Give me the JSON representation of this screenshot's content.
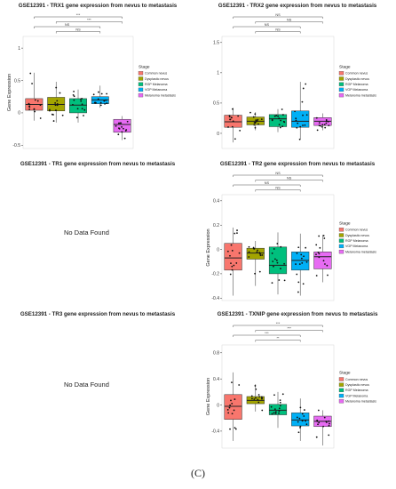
{
  "figure_caption": "(C)",
  "legend_title": "Stage",
  "legend_items": [
    {
      "name": "Common nevus",
      "color": "#f8766d"
    },
    {
      "name": "Dysplastic nevus",
      "color": "#a3a500"
    },
    {
      "name": "RGP Melanoma",
      "color": "#00bf7d"
    },
    {
      "name": "VGP Melanoma",
      "color": "#00b0f6"
    },
    {
      "name": "Melanoma metastasis",
      "color": "#e76bf3"
    }
  ],
  "chart_data": [
    {
      "id": "trx1",
      "type": "box",
      "title": "GSE12391 - TRX1 gene expression from nevus to metastasis",
      "ylabel": "Gene Expression",
      "xlabel": "",
      "ylim": [
        -0.55,
        1.18
      ],
      "yticks": [
        -0.5,
        0,
        0.5,
        1
      ],
      "ytick_labels": [
        "-0.5",
        "0",
        "0.5",
        "1"
      ],
      "grid": false,
      "legend": "right",
      "groups": [
        {
          "stage": "Common nevus",
          "q1": 0.04,
          "median": 0.13,
          "q3": 0.22,
          "lo": -0.12,
          "hi": 0.62
        },
        {
          "stage": "Dysplastic nevus",
          "q1": 0.03,
          "median": 0.13,
          "q3": 0.24,
          "lo": -0.15,
          "hi": 0.48
        },
        {
          "stage": "RGP Melanoma",
          "q1": 0.0,
          "median": 0.12,
          "q3": 0.22,
          "lo": -0.15,
          "hi": 0.36
        },
        {
          "stage": "VGP Melanoma",
          "q1": 0.14,
          "median": 0.2,
          "q3": 0.25,
          "lo": 0.08,
          "hi": 0.42
        },
        {
          "stage": "Melanoma metastasis",
          "q1": -0.3,
          "median": -0.18,
          "q3": -0.1,
          "lo": -0.42,
          "hi": -0.05
        }
      ],
      "comparisons": [
        {
          "from": 1,
          "to": 5,
          "label": "***"
        },
        {
          "from": 2,
          "to": 5,
          "label": "***"
        },
        {
          "from": 1,
          "to": 4,
          "label": "NS"
        },
        {
          "from": 2,
          "to": 4,
          "label": "NS"
        }
      ]
    },
    {
      "id": "trx2",
      "type": "box",
      "title": "GSE12391 - TRX2 gene expression from nevus to metastasis",
      "ylabel": "",
      "xlabel": "",
      "ylim": [
        -0.25,
        1.6
      ],
      "yticks": [
        0,
        0.5,
        1,
        1.5
      ],
      "ytick_labels": [
        "0",
        "0.5",
        "1",
        "1.5"
      ],
      "grid": false,
      "legend": "right",
      "groups": [
        {
          "stage": "Common nevus",
          "q1": 0.1,
          "median": 0.19,
          "q3": 0.3,
          "lo": -0.15,
          "hi": 0.42
        },
        {
          "stage": "Dysplastic nevus",
          "q1": 0.14,
          "median": 0.2,
          "q3": 0.27,
          "lo": 0.05,
          "hi": 0.35
        },
        {
          "stage": "RGP Melanoma",
          "q1": 0.11,
          "median": 0.24,
          "q3": 0.31,
          "lo": 0.02,
          "hi": 0.4
        },
        {
          "stage": "VGP Melanoma",
          "q1": 0.1,
          "median": 0.2,
          "q3": 0.37,
          "lo": -0.1,
          "hi": 0.85
        },
        {
          "stage": "Melanoma metastasis",
          "q1": 0.13,
          "median": 0.2,
          "q3": 0.26,
          "lo": 0.05,
          "hi": 0.33
        }
      ],
      "comparisons": [
        {
          "from": 1,
          "to": 5,
          "label": "NS"
        },
        {
          "from": 2,
          "to": 5,
          "label": "NS"
        },
        {
          "from": 1,
          "to": 4,
          "label": "NS"
        },
        {
          "from": 2,
          "to": 4,
          "label": "NS"
        }
      ]
    },
    {
      "id": "tr2",
      "type": "box",
      "title": "GSE12391 - TR2 gene expression from nevus to metastasis",
      "ylabel": "Gene Expression",
      "xlabel": "",
      "ylim": [
        -0.42,
        0.45
      ],
      "yticks": [
        -0.4,
        -0.2,
        0,
        0.2,
        0.4
      ],
      "ytick_labels": [
        "-0.4",
        "-0.2",
        "0",
        "0.2",
        "0.4"
      ],
      "grid": false,
      "legend": "right",
      "groups": [
        {
          "stage": "Common nevus",
          "q1": -0.17,
          "median": -0.07,
          "q3": 0.05,
          "lo": -0.38,
          "hi": 0.18
        },
        {
          "stage": "Dysplastic nevus",
          "q1": -0.08,
          "median": -0.03,
          "q3": 0.01,
          "lo": -0.3,
          "hi": 0.07
        },
        {
          "stage": "RGP Melanoma",
          "q1": -0.2,
          "median": -0.13,
          "q3": 0.02,
          "lo": -0.37,
          "hi": 0.14
        },
        {
          "stage": "VGP Melanoma",
          "q1": -0.17,
          "median": -0.09,
          "q3": -0.02,
          "lo": -0.38,
          "hi": 0.13
        },
        {
          "stage": "Melanoma metastasis",
          "q1": -0.16,
          "median": -0.06,
          "q3": -0.02,
          "lo": -0.27,
          "hi": 0.12
        }
      ],
      "comparisons": [
        {
          "from": 1,
          "to": 5,
          "label": "NS"
        },
        {
          "from": 2,
          "to": 5,
          "label": "NS"
        },
        {
          "from": 1,
          "to": 4,
          "label": "NS"
        },
        {
          "from": 2,
          "to": 4,
          "label": "NS"
        }
      ]
    },
    {
      "id": "txnip",
      "type": "box",
      "title": "GSE12391 - TXNIP gene expression from nevus to metastasis",
      "ylabel": "Gene Expression",
      "xlabel": "",
      "ylim": [
        -0.66,
        0.92
      ],
      "yticks": [
        -0.4,
        0,
        0.4,
        0.8
      ],
      "ytick_labels": [
        "-0.4",
        "0",
        "0.4",
        "0.8"
      ],
      "grid": false,
      "legend": "right",
      "groups": [
        {
          "stage": "Common nevus",
          "q1": -0.22,
          "median": -0.02,
          "q3": 0.16,
          "lo": -0.55,
          "hi": 0.5
        },
        {
          "stage": "Dysplastic nevus",
          "q1": 0.02,
          "median": 0.07,
          "q3": 0.13,
          "lo": -0.1,
          "hi": 0.32
        },
        {
          "stage": "RGP Melanoma",
          "q1": -0.15,
          "median": -0.08,
          "q3": 0.01,
          "lo": -0.35,
          "hi": 0.2
        },
        {
          "stage": "VGP Melanoma",
          "q1": -0.32,
          "median": -0.23,
          "q3": -0.12,
          "lo": -0.55,
          "hi": 0.1
        },
        {
          "stage": "Melanoma metastasis",
          "q1": -0.33,
          "median": -0.25,
          "q3": -0.17,
          "lo": -0.62,
          "hi": -0.08
        }
      ],
      "comparisons": [
        {
          "from": 1,
          "to": 5,
          "label": "***"
        },
        {
          "from": 2,
          "to": 5,
          "label": "***"
        },
        {
          "from": 1,
          "to": 4,
          "label": "***"
        },
        {
          "from": 2,
          "to": 4,
          "label": "**"
        }
      ]
    }
  ],
  "empty_panels": [
    {
      "id": "tr1",
      "title": "GSE12391 - TR1 gene expression from nevus to metastasis",
      "message": "No Data Found"
    },
    {
      "id": "tr3",
      "title": "GSE12391 - TR3 gene expression from nevus to metastasis",
      "message": "No Data Found"
    }
  ]
}
